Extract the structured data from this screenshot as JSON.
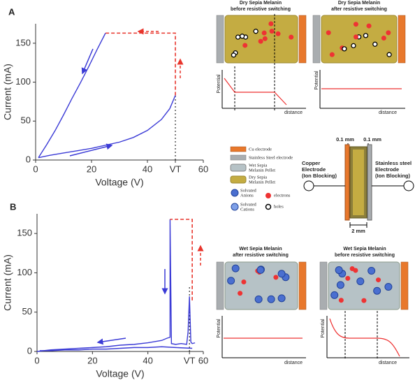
{
  "chart_data": [
    {
      "type": "line",
      "panel_label": "A",
      "xlabel": "Voltage (V)",
      "ylabel": "Current (mA)",
      "xlim": [
        0,
        60
      ],
      "ylim": [
        0,
        175
      ],
      "xticks": [
        0,
        20,
        40,
        {
          "value": 50,
          "label": "VT"
        },
        60
      ],
      "yticks": [
        0,
        50,
        100,
        150
      ],
      "series": [
        {
          "color": "#3b3bd6",
          "x": [
            1,
            5,
            10,
            15,
            20,
            25,
            30,
            35,
            40,
            45,
            48,
            50
          ],
          "values": [
            3,
            6,
            9,
            12,
            15,
            19,
            23,
            29,
            38,
            52,
            66,
            83
          ]
        },
        {
          "color": "#3b3bd6",
          "x": [
            25,
            22,
            19,
            16,
            13,
            10,
            7,
            4,
            1
          ],
          "values": [
            163,
            142,
            120,
            99,
            79,
            58,
            38,
            20,
            3
          ]
        },
        {
          "color": "#e8352c",
          "dash": true,
          "x": [
            50,
            50,
            25
          ],
          "values": [
            83,
            163,
            163
          ]
        }
      ]
    },
    {
      "type": "line",
      "panel_label": "B",
      "xlabel": "Voltage (V)",
      "ylabel": "Current (mA)",
      "xlim": [
        0,
        60
      ],
      "ylim": [
        0,
        175
      ],
      "xticks": [
        0,
        20,
        40,
        {
          "value": 55,
          "label": "VT"
        },
        60
      ],
      "yticks": [
        0,
        50,
        100,
        150
      ],
      "series": [
        {
          "color": "#3b3bd6",
          "x": [
            0,
            5,
            10,
            15,
            20,
            25,
            30,
            35,
            40,
            45,
            47,
            48,
            48,
            48.5,
            50,
            52,
            54,
            54.5,
            55,
            55.5,
            56,
            57
          ],
          "values": [
            0,
            2,
            3,
            4,
            5,
            6,
            8,
            9,
            11,
            14,
            17,
            18,
            168,
            10,
            9,
            10,
            9,
            25,
            70,
            12,
            10,
            11
          ]
        },
        {
          "color": "#3b3bd6",
          "x": [
            56,
            50,
            45,
            40,
            35,
            30,
            25,
            20,
            15,
            10,
            5,
            1
          ],
          "values": [
            4,
            5,
            6,
            5,
            5,
            4,
            3,
            3,
            2,
            2,
            1,
            1
          ]
        },
        {
          "color": "#e8352c",
          "dash": true,
          "x": [
            56,
            56,
            48
          ],
          "values": [
            65,
            168,
            168
          ]
        }
      ]
    }
  ],
  "diagrams": {
    "dry_before": {
      "title": [
        "Dry Sepia Melanin",
        "before resistive switching"
      ],
      "ylabel": "Potential",
      "xlabel": "distance"
    },
    "dry_after": {
      "title": [
        "Dry Sepia Melanin",
        "after resistive switching"
      ],
      "ylabel": "Potential",
      "xlabel": "distance"
    },
    "wet_after": {
      "title": [
        "Wet Sepia Melanin",
        "after resistive switching"
      ],
      "ylabel": "Potential",
      "xlabel": "distance"
    },
    "wet_before": {
      "title": [
        "Wet Sepia Melanin",
        "before resistive switching"
      ],
      "ylabel": "Potential",
      "xlabel": "distance"
    }
  },
  "legend": {
    "cu": "Cu electrode",
    "ss": "Stainless Steel electrode",
    "wet": [
      "Wet Sepia",
      "Melanin Pellet"
    ],
    "dry": [
      "Dry Sepia",
      "Melanin Pellet"
    ],
    "anions": [
      "Solvated",
      "Anions"
    ],
    "cations": [
      "Solvated",
      "Cations"
    ],
    "electrons": "electrons",
    "holes": "holes"
  },
  "cell": {
    "left_gap": "0.1 mm",
    "right_gap": "0.1 mm",
    "left": [
      "Copper",
      "Electrode",
      "(Ion Blocking)"
    ],
    "right": [
      "Stainless steel",
      "Electrode",
      "(Ion Blocking)"
    ],
    "width": "2 mm"
  }
}
